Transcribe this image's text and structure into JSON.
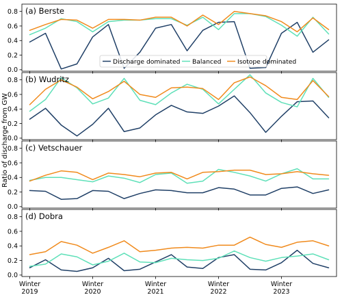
{
  "chart_data": {
    "type": "line",
    "ylabel": "Ratio of discharge from GW",
    "x_tick_labels": [
      [
        "Winter",
        "2019"
      ],
      [
        "Winter",
        "2020"
      ],
      [
        "Winter",
        "2021"
      ],
      [
        "Winter",
        "2022"
      ],
      [
        "Winter",
        "2023"
      ]
    ],
    "x_tick_positions": [
      0,
      4,
      8,
      12,
      16
    ],
    "x_range": [
      -0.5,
      19.5
    ],
    "ylim": [
      -0.02,
      0.9
    ],
    "yticks": [
      "0.0",
      "0.2",
      "0.4",
      "0.6",
      "0.8"
    ],
    "legend": {
      "placement": "center, inside panel (a)",
      "entries": [
        "Discharge dominated",
        "Balanced",
        "Isotope dominated"
      ]
    },
    "colors": {
      "discharge_dominated": "#1f3f66",
      "balanced": "#5ee0b8",
      "isotope_dominated": "#f08a1c"
    },
    "panels": [
      {
        "title": "(a) Berste",
        "series": [
          {
            "name": "Discharge dominated",
            "values": [
              0.38,
              0.5,
              0.01,
              0.08,
              0.45,
              0.62,
              0.02,
              0.24,
              0.57,
              0.62,
              0.26,
              0.54,
              0.65,
              0.66,
              0.02,
              0.03,
              0.5,
              0.65,
              0.24,
              0.41
            ]
          },
          {
            "name": "Balanced",
            "values": [
              0.48,
              0.57,
              0.7,
              0.66,
              0.52,
              0.66,
              0.68,
              0.68,
              0.7,
              0.7,
              0.61,
              0.72,
              0.55,
              0.77,
              0.77,
              0.73,
              0.61,
              0.46,
              0.72,
              0.49
            ]
          },
          {
            "name": "Isotope dominated",
            "values": [
              0.54,
              0.62,
              0.69,
              0.68,
              0.57,
              0.69,
              0.69,
              0.68,
              0.72,
              0.72,
              0.6,
              0.75,
              0.62,
              0.8,
              0.77,
              0.74,
              0.66,
              0.52,
              0.71,
              0.55
            ]
          }
        ]
      },
      {
        "title": "(b) Wudritz",
        "series": [
          {
            "name": "Discharge dominated",
            "values": [
              0.26,
              0.41,
              0.18,
              0.03,
              0.19,
              0.41,
              0.09,
              0.14,
              0.32,
              0.45,
              0.36,
              0.34,
              0.44,
              0.58,
              0.35,
              0.08,
              0.3,
              0.5,
              0.51,
              0.28
            ]
          },
          {
            "name": "Balanced",
            "values": [
              0.37,
              0.53,
              0.83,
              0.69,
              0.47,
              0.55,
              0.82,
              0.52,
              0.46,
              0.62,
              0.74,
              0.67,
              0.47,
              0.67,
              0.87,
              0.62,
              0.49,
              0.43,
              0.82,
              0.56
            ]
          },
          {
            "name": "Isotope dominated",
            "values": [
              0.46,
              0.67,
              0.8,
              0.7,
              0.54,
              0.64,
              0.78,
              0.6,
              0.56,
              0.69,
              0.7,
              0.68,
              0.53,
              0.76,
              0.84,
              0.72,
              0.56,
              0.53,
              0.79,
              0.57
            ]
          }
        ]
      },
      {
        "title": "(c) Vetschauer",
        "series": [
          {
            "name": "Discharge dominated",
            "values": [
              0.22,
              0.21,
              0.1,
              0.11,
              0.22,
              0.21,
              0.11,
              0.18,
              0.23,
              0.22,
              0.19,
              0.19,
              0.26,
              0.24,
              0.16,
              0.16,
              0.25,
              0.27,
              0.18,
              0.23
            ]
          },
          {
            "name": "Balanced",
            "values": [
              0.36,
              0.4,
              0.4,
              0.37,
              0.34,
              0.42,
              0.39,
              0.33,
              0.44,
              0.46,
              0.32,
              0.35,
              0.51,
              0.47,
              0.42,
              0.35,
              0.45,
              0.52,
              0.38,
              0.38
            ]
          },
          {
            "name": "Isotope dominated",
            "values": [
              0.35,
              0.43,
              0.49,
              0.47,
              0.37,
              0.46,
              0.44,
              0.41,
              0.46,
              0.47,
              0.38,
              0.47,
              0.48,
              0.5,
              0.5,
              0.44,
              0.45,
              0.48,
              0.45,
              0.43
            ]
          }
        ]
      },
      {
        "title": "(d) Dobra",
        "series": [
          {
            "name": "Discharge dominated",
            "values": [
              0.1,
              0.21,
              0.07,
              0.05,
              0.1,
              0.23,
              0.06,
              0.08,
              0.18,
              0.28,
              0.11,
              0.09,
              0.24,
              0.28,
              0.08,
              0.07,
              0.17,
              0.34,
              0.16,
              0.1
            ]
          },
          {
            "name": "Balanced",
            "values": [
              0.12,
              0.15,
              0.29,
              0.25,
              0.14,
              0.19,
              0.3,
              0.18,
              0.17,
              0.23,
              0.21,
              0.2,
              0.23,
              0.33,
              0.24,
              0.19,
              0.24,
              0.26,
              0.29,
              0.21
            ]
          },
          {
            "name": "Isotope dominated",
            "values": [
              0.28,
              0.32,
              0.46,
              0.41,
              0.3,
              0.38,
              0.47,
              0.32,
              0.34,
              0.37,
              0.38,
              0.37,
              0.41,
              0.41,
              0.52,
              0.42,
              0.38,
              0.45,
              0.47,
              0.4
            ]
          }
        ]
      }
    ]
  }
}
